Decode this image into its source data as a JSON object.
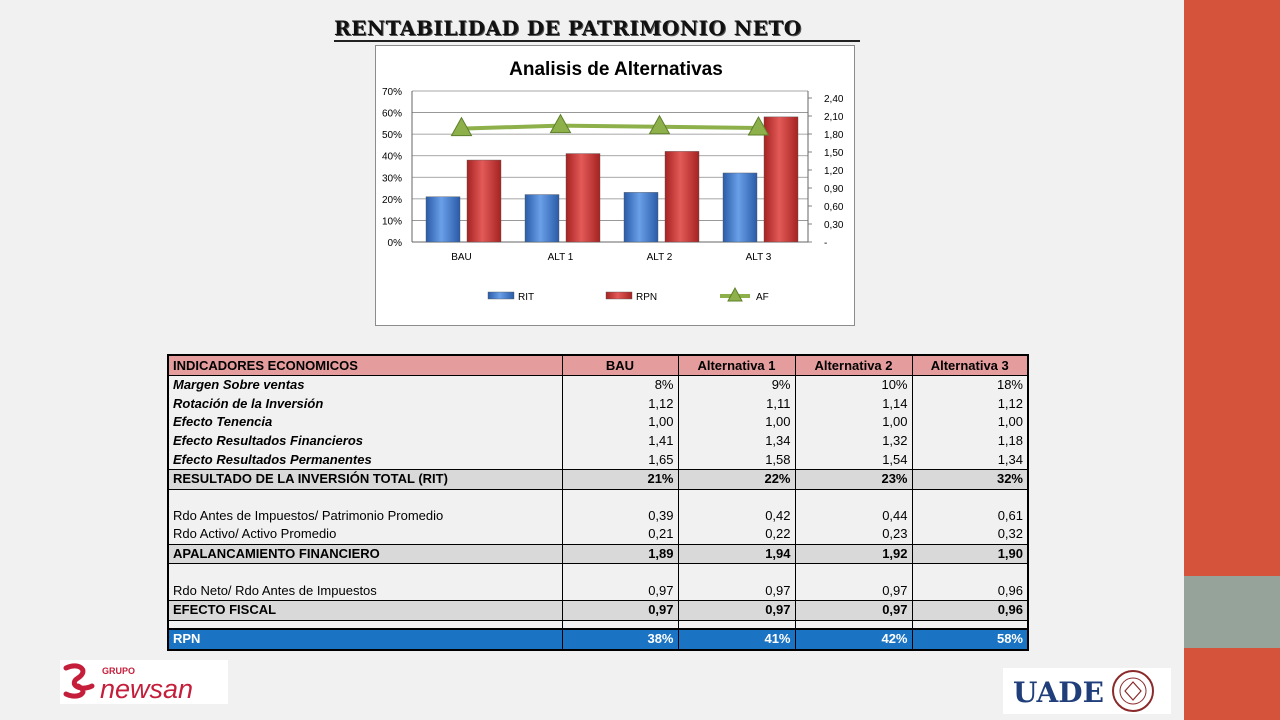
{
  "slide": {
    "title": "RENTABILIDAD DE PATRIMONIO NETO",
    "colors": {
      "sidebar": "#d5533b",
      "sidebar_accent": "#95a39a",
      "header_row": "#e59c9c",
      "total_row": "#d9d9d9",
      "rpn_row": "#1b74c3"
    }
  },
  "chart_data": {
    "type": "bar",
    "title": "Analisis de Alternativas",
    "categories": [
      "BAU",
      "ALT 1",
      "ALT 2",
      "ALT 3"
    ],
    "series": [
      {
        "name": "RIT",
        "kind": "bar",
        "axis": "left",
        "color": "#3f78c8",
        "values": [
          0.21,
          0.22,
          0.23,
          0.32
        ]
      },
      {
        "name": "RPN",
        "kind": "bar",
        "axis": "left",
        "color": "#c83634",
        "values": [
          0.38,
          0.41,
          0.42,
          0.58
        ]
      },
      {
        "name": "AF",
        "kind": "line",
        "axis": "right",
        "color": "#8db04a",
        "values": [
          1.89,
          1.94,
          1.92,
          1.9
        ]
      }
    ],
    "left_axis": {
      "ticks": [
        "0%",
        "10%",
        "20%",
        "30%",
        "40%",
        "50%",
        "60%",
        "70%"
      ],
      "ylim": [
        0,
        0.7
      ]
    },
    "right_axis": {
      "ticks": [
        "-",
        "0,30",
        "0,60",
        "0,90",
        "1,20",
        "1,50",
        "1,80",
        "2,10",
        "2,40"
      ],
      "ylim": [
        0,
        2.4
      ]
    },
    "grid": true,
    "legend_position": "bottom"
  },
  "table": {
    "header": [
      "INDICADORES ECONOMICOS",
      "BAU",
      "Alternativa 1",
      "Alternativa 2",
      "Alternativa 3"
    ],
    "rows": [
      {
        "style": "italic",
        "label": "Margen Sobre ventas",
        "values": [
          "8%",
          "9%",
          "10%",
          "18%"
        ]
      },
      {
        "style": "italic",
        "label": "Rotación de la Inversión",
        "values": [
          "1,12",
          "1,11",
          "1,14",
          "1,12"
        ]
      },
      {
        "style": "italic",
        "label": "Efecto Tenencia",
        "values": [
          "1,00",
          "1,00",
          "1,00",
          "1,00"
        ]
      },
      {
        "style": "italic",
        "label": "Efecto Resultados Financieros",
        "values": [
          "1,41",
          "1,34",
          "1,32",
          "1,18"
        ]
      },
      {
        "style": "italic",
        "label": "Efecto Resultados Permanentes",
        "values": [
          "1,65",
          "1,58",
          "1,54",
          "1,34"
        ]
      },
      {
        "style": "total",
        "label": "RESULTADO DE LA INVERSIÓN TOTAL (RIT)",
        "values": [
          "21%",
          "22%",
          "23%",
          "32%"
        ]
      },
      {
        "style": "blank",
        "label": "",
        "values": [
          "",
          "",
          "",
          ""
        ]
      },
      {
        "style": "plain",
        "label": "Rdo Antes de Impuestos/ Patrimonio Promedio",
        "values": [
          "0,39",
          "0,42",
          "0,44",
          "0,61"
        ]
      },
      {
        "style": "plain",
        "label": "Rdo Activo/ Activo Promedio",
        "values": [
          "0,21",
          "0,22",
          "0,23",
          "0,32"
        ]
      },
      {
        "style": "total",
        "label": "APALANCAMIENTO FINANCIERO",
        "values": [
          "1,89",
          "1,94",
          "1,92",
          "1,90"
        ]
      },
      {
        "style": "blank",
        "label": "",
        "values": [
          "",
          "",
          "",
          ""
        ]
      },
      {
        "style": "plain",
        "label": "Rdo Neto/ Rdo Antes de Impuestos",
        "values": [
          "0,97",
          "0,97",
          "0,97",
          "0,96"
        ]
      },
      {
        "style": "total",
        "label": "EFECTO FISCAL",
        "values": [
          "0,97",
          "0,97",
          "0,97",
          "0,96"
        ]
      },
      {
        "style": "blank2",
        "label": "",
        "values": [
          "",
          "",
          "",
          ""
        ]
      },
      {
        "style": "rpn",
        "label": "RPN",
        "values": [
          "38%",
          "41%",
          "42%",
          "58%"
        ]
      }
    ]
  },
  "logos": {
    "left": {
      "group": "GRUPO",
      "name": "newsan"
    },
    "right": {
      "name": "UADE"
    }
  }
}
